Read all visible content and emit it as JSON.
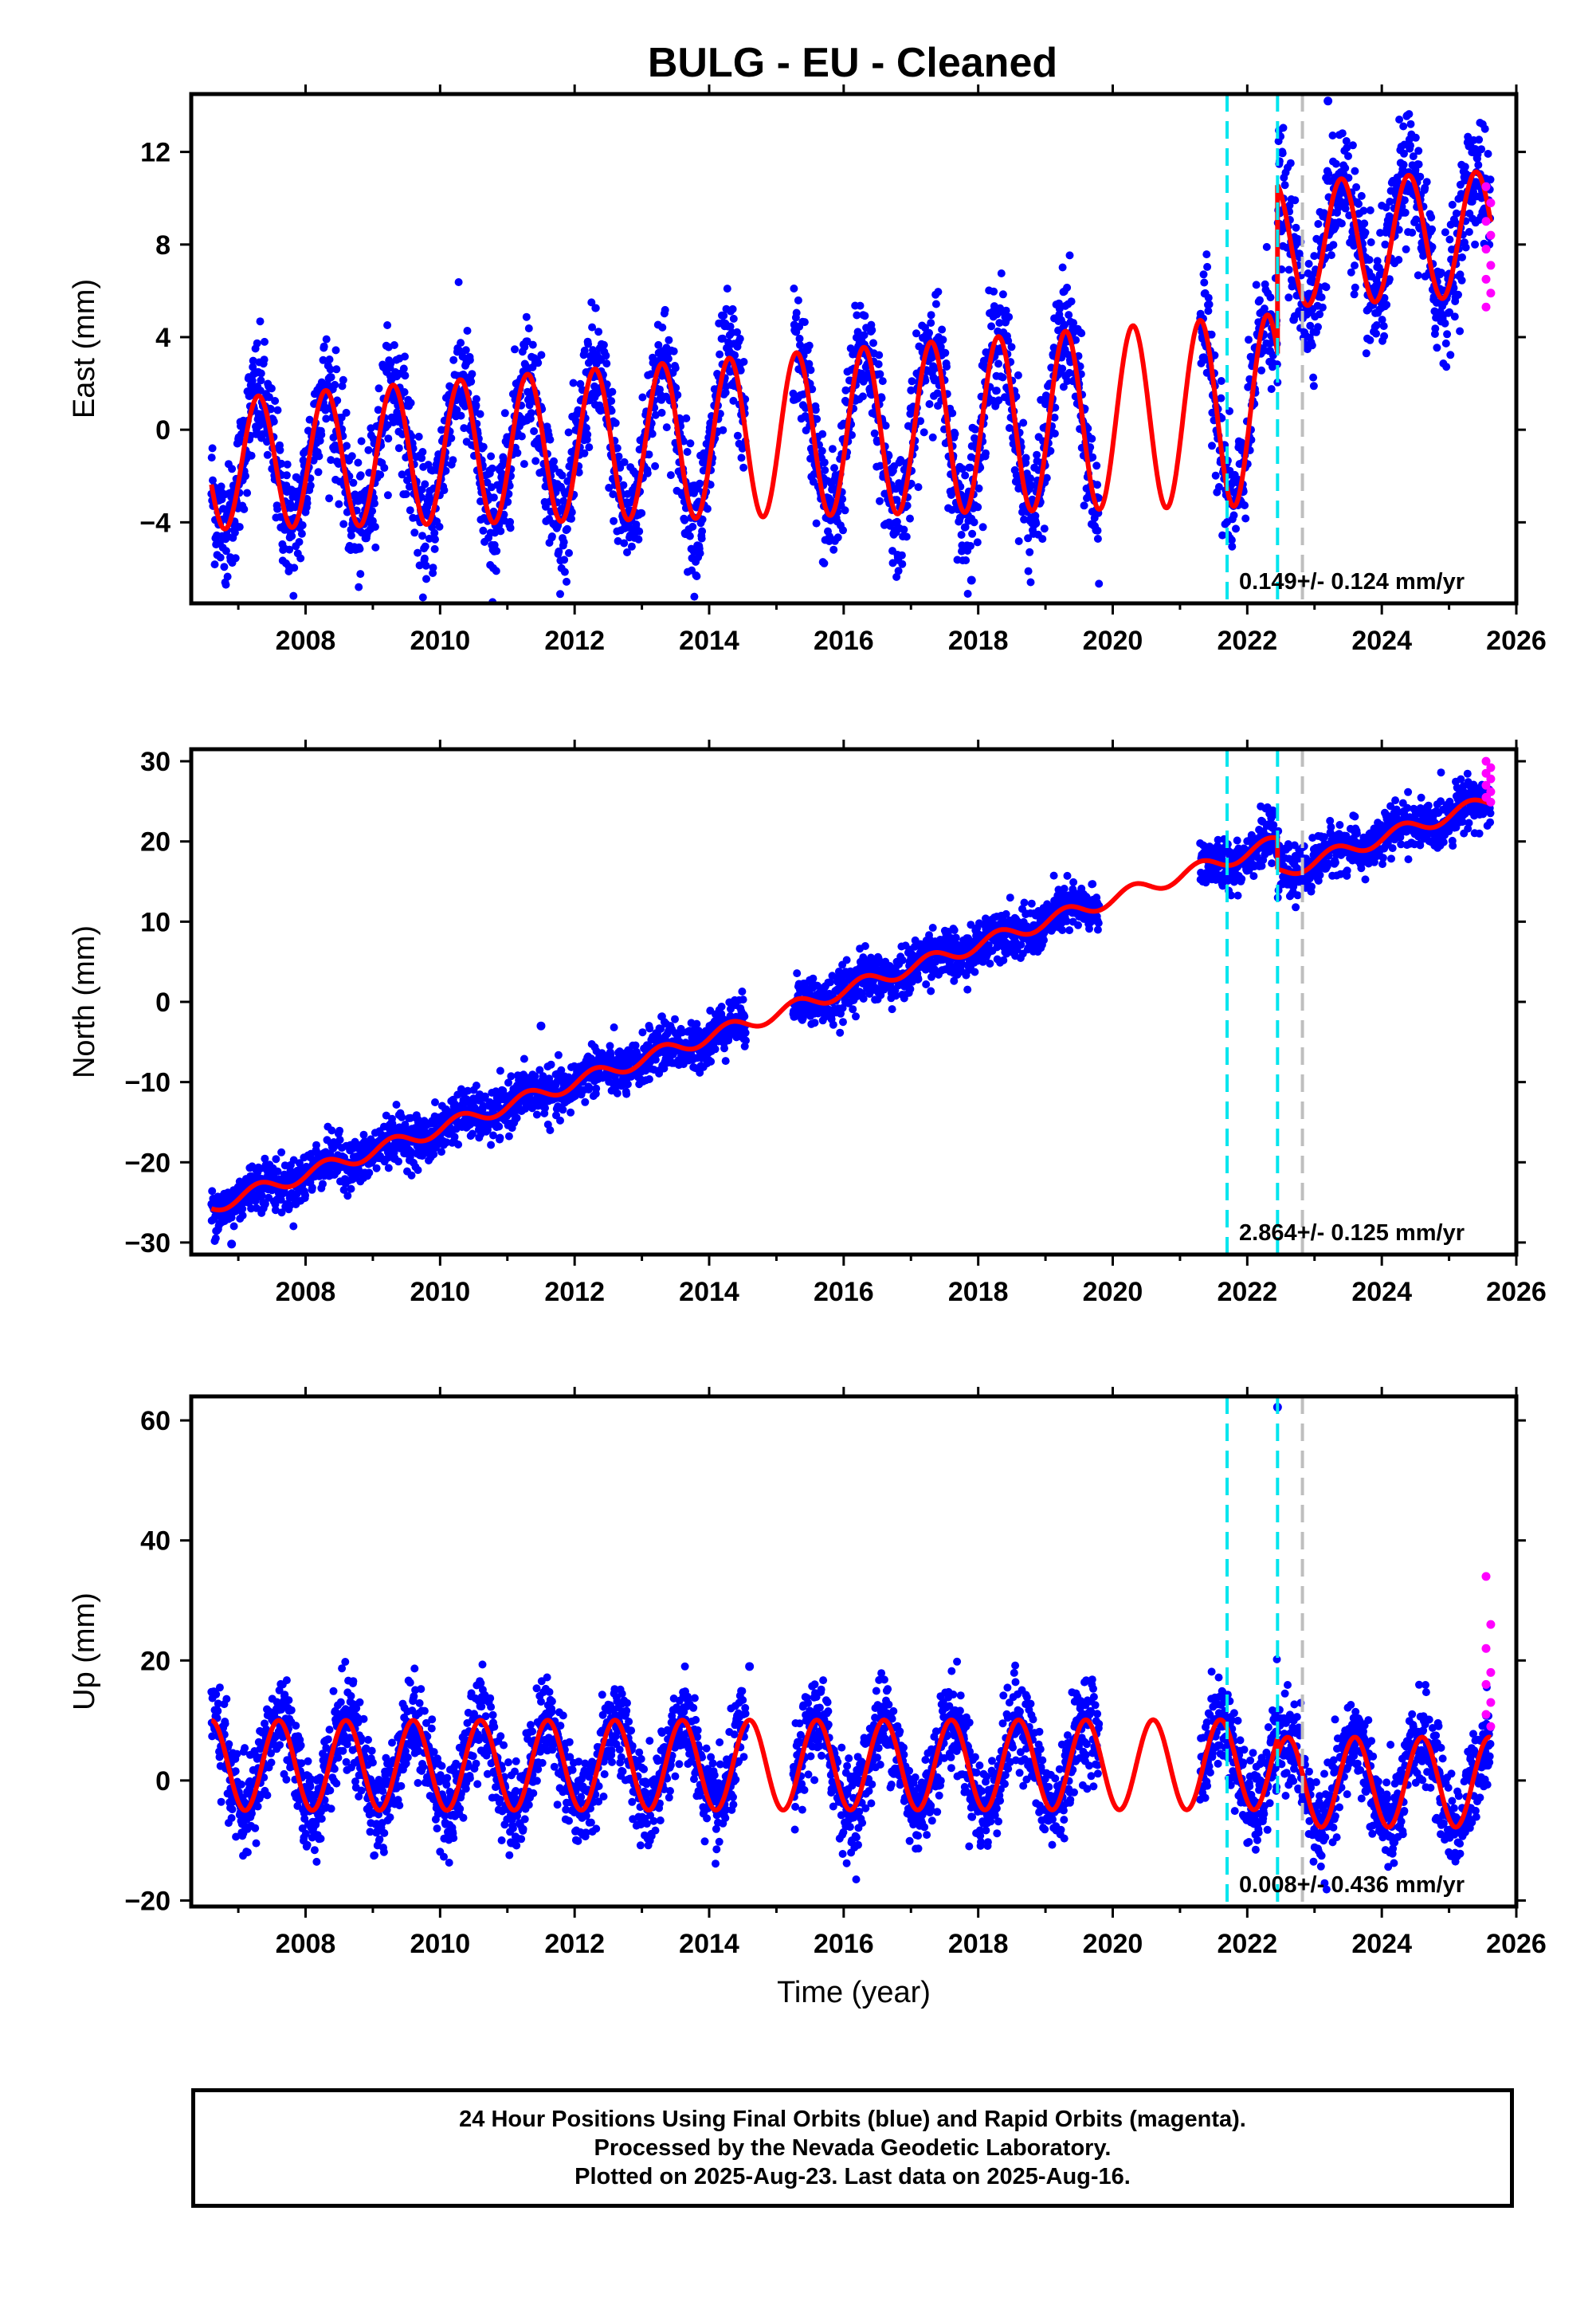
{
  "title": "BULG  - EU - Cleaned",
  "colors": {
    "final_orbits": "#0000ff",
    "rapid_orbits": "#ff00ff",
    "model_fit": "#ff0000",
    "equipment_change": "#00e5ee",
    "other_event": "#bebebe"
  },
  "caption": {
    "line1": "24 Hour Positions Using Final Orbits (blue) and Rapid Orbits (magenta).",
    "line2": "Processed by the Nevada Geodetic Laboratory.",
    "line3": "Plotted on 2025-Aug-23. Last data on 2025-Aug-16."
  },
  "chart_data": [
    {
      "type": "scatter",
      "name": "east",
      "ylabel": "East (mm)",
      "xlabel": "",
      "xlim": [
        2006.3,
        2026.0
      ],
      "ylim": [
        -7.5,
        14.5
      ],
      "xticks": [
        "2008",
        "2010",
        "2012",
        "2014",
        "2016",
        "2018",
        "2020",
        "2022",
        "2024",
        "2026"
      ],
      "yticks": [
        "12",
        "8",
        "4",
        "0",
        "−4"
      ],
      "ytick_values": [
        12,
        8,
        4,
        0,
        -4
      ],
      "rate_label": "0.149+/- 0.124 mm/yr",
      "event_lines": [
        {
          "x": 2021.7,
          "kind": "equipment_change"
        },
        {
          "x": 2022.45,
          "kind": "equipment_change"
        },
        {
          "x": 2022.82,
          "kind": "other_event"
        }
      ],
      "model": {
        "data_start": 2006.6,
        "data_end": 2025.62,
        "segments": [
          {
            "from": 2006.6,
            "to": 2022.45,
            "intercept_year": 2006.6,
            "intercept": -1.5,
            "rate": 0.149,
            "amplitude": 2.8,
            "amplitude_growth": 0.03,
            "phase_year": 2007.3
          },
          {
            "from": 2022.45,
            "to": 2025.62,
            "intercept_year": 2022.45,
            "intercept": 8.0,
            "rate": 0.149,
            "amplitude": 2.7,
            "amplitude_growth": 0.0,
            "phase_year": 2023.4
          }
        ]
      },
      "scatter_sd": 1.3,
      "gaps": [
        [
          2014.55,
          2015.25
        ],
        [
          2019.8,
          2021.3
        ]
      ],
      "rapid_points": {
        "x_range": [
          2025.55,
          2025.62
        ],
        "y_values": [
          10.5,
          9.8,
          9.0,
          8.4,
          7.8,
          7.1,
          6.5,
          5.9,
          5.3
        ]
      },
      "outliers": [
        {
          "x": 2023.2,
          "y": 14.2
        },
        {
          "x": 2017.9,
          "y": -6.5
        }
      ]
    },
    {
      "type": "scatter",
      "name": "north",
      "ylabel": "North (mm)",
      "xlabel": "",
      "xlim": [
        2006.3,
        2026.0
      ],
      "ylim": [
        -31.5,
        31.5
      ],
      "xticks": [
        "2008",
        "2010",
        "2012",
        "2014",
        "2016",
        "2018",
        "2020",
        "2022",
        "2024",
        "2026"
      ],
      "yticks": [
        "30",
        "20",
        "10",
        "0",
        "−10",
        "−20",
        "−30"
      ],
      "ytick_values": [
        30,
        20,
        10,
        0,
        -10,
        -20,
        -30
      ],
      "rate_label": "2.864+/- 0.125 mm/yr",
      "event_lines": [
        {
          "x": 2021.7,
          "kind": "equipment_change"
        },
        {
          "x": 2022.45,
          "kind": "equipment_change"
        },
        {
          "x": 2022.82,
          "kind": "other_event"
        }
      ],
      "model": {
        "data_start": 2006.6,
        "data_end": 2025.62,
        "segments": [
          {
            "from": 2006.6,
            "to": 2022.45,
            "intercept_year": 2006.6,
            "intercept": -25.5,
            "rate": 2.864,
            "amplitude": 0.9,
            "amplitude_growth": 0.0,
            "phase_year": 2007.3
          },
          {
            "from": 2022.45,
            "to": 2025.62,
            "intercept_year": 2022.45,
            "intercept": 16.0,
            "rate": 2.864,
            "amplitude": 0.9,
            "amplitude_growth": 0.0,
            "phase_year": 2023.3
          }
        ]
      },
      "scatter_sd": 1.5,
      "gaps": [
        [
          2014.55,
          2015.25
        ],
        [
          2019.8,
          2021.3
        ]
      ],
      "rapid_points": {
        "x_range": [
          2025.55,
          2025.62
        ],
        "y_values": [
          30.0,
          29.2,
          28.5,
          27.8,
          27.0,
          26.2,
          25.5,
          24.9
        ]
      },
      "outliers": [
        {
          "x": 2011.5,
          "y": -3
        },
        {
          "x": 2006.9,
          "y": -30.2
        }
      ]
    },
    {
      "type": "scatter",
      "name": "up",
      "ylabel": "Up (mm)",
      "xlabel": "Time (year)",
      "xlim": [
        2006.3,
        2026.0
      ],
      "ylim": [
        -21,
        64
      ],
      "xticks": [
        "2008",
        "2010",
        "2012",
        "2014",
        "2016",
        "2018",
        "2020",
        "2022",
        "2024",
        "2026"
      ],
      "yticks": [
        "60",
        "40",
        "20",
        "0",
        "−20"
      ],
      "ytick_values": [
        60,
        40,
        20,
        0,
        -20
      ],
      "rate_label": "0.008+/- 0.436 mm/yr",
      "event_lines": [
        {
          "x": 2021.7,
          "kind": "equipment_change"
        },
        {
          "x": 2022.45,
          "kind": "equipment_change"
        },
        {
          "x": 2022.82,
          "kind": "other_event"
        }
      ],
      "model": {
        "data_start": 2006.6,
        "data_end": 2025.62,
        "segments": [
          {
            "from": 2006.6,
            "to": 2022.45,
            "intercept_year": 2006.6,
            "intercept": 2.5,
            "rate": 0.008,
            "amplitude": 7.5,
            "amplitude_growth": 0.0,
            "phase_year": 2007.6
          },
          {
            "from": 2022.45,
            "to": 2025.62,
            "intercept_year": 2022.45,
            "intercept": -0.3,
            "rate": 0.008,
            "amplitude": 7.5,
            "amplitude_growth": 0.0,
            "phase_year": 2023.6
          }
        ]
      },
      "scatter_sd": 3.8,
      "gaps": [
        [
          2014.55,
          2015.25
        ],
        [
          2019.8,
          2021.3
        ]
      ],
      "rapid_points": {
        "x_range": [
          2025.55,
          2025.62
        ],
        "y_values": [
          34,
          26,
          22,
          18,
          16,
          13,
          11,
          9
        ]
      },
      "outliers": [
        {
          "x": 2022.45,
          "y": 62.2
        },
        {
          "x": 2014.6,
          "y": 19
        }
      ]
    }
  ]
}
